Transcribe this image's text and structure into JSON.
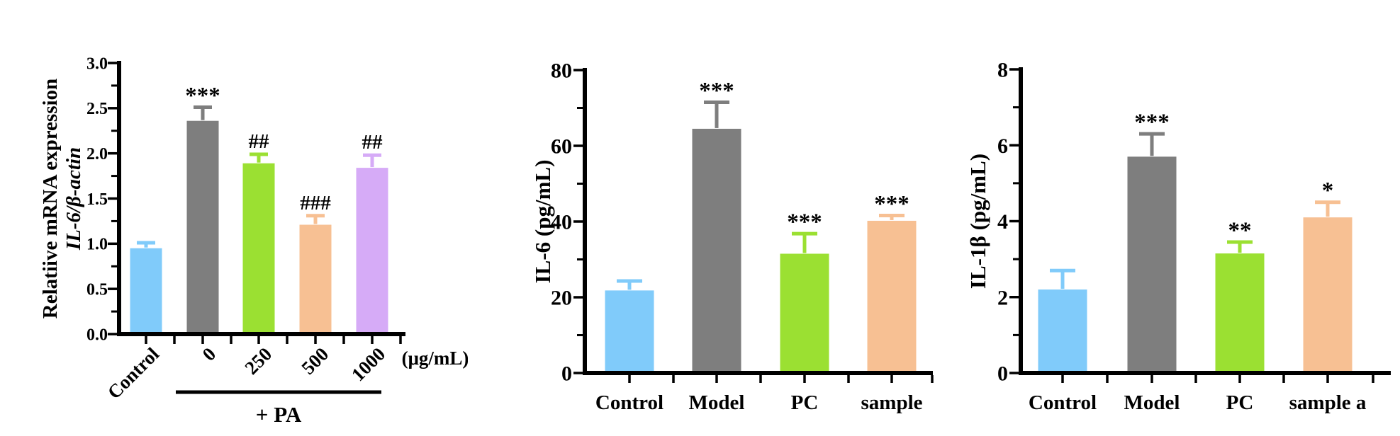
{
  "page": {
    "background": "#ffffff"
  },
  "chart_data": [
    {
      "type": "bar",
      "title": "",
      "ylabel_lines": [
        {
          "text": "Relatiive mRNA expression",
          "italic": false
        },
        {
          "text": "IL-6/β-actin",
          "italic": true
        }
      ],
      "xunit_label": "(μg/mL)",
      "group_bracket_label": "+ PA",
      "group_bracket_covers": [
        "0",
        "250",
        "500",
        "1000"
      ],
      "ylim": [
        0,
        3.0
      ],
      "ytick_values": [
        0,
        0.5,
        1.0,
        1.5,
        2.0,
        2.5,
        3.0
      ],
      "ytick_labels": [
        "0.0",
        "0.5",
        "1.0",
        "1.5",
        "2.0",
        "2.5",
        "3.0"
      ],
      "ytick_minor_step": 0.25,
      "categories": [
        "Control",
        "0",
        "250",
        "500",
        "1000"
      ],
      "values": [
        0.95,
        2.36,
        1.89,
        1.21,
        1.84
      ],
      "errors": [
        0.06,
        0.15,
        0.1,
        0.1,
        0.14
      ],
      "sig_labels": [
        "",
        "***",
        "##",
        "###",
        "##"
      ],
      "bar_colors": [
        "#80CBFA",
        "#7E7E7E",
        "#9BE032",
        "#F7C093",
        "#D6ABF7"
      ],
      "grid": false,
      "legend": "none"
    },
    {
      "type": "bar",
      "title": "",
      "ylabel": "IL-6 (pg/mL)",
      "ylim": [
        0,
        80
      ],
      "ytick_values": [
        0,
        20,
        40,
        60,
        80
      ],
      "ytick_labels": [
        "0",
        "20",
        "40",
        "60",
        "80"
      ],
      "ytick_minor_step": 10,
      "categories": [
        "Control",
        "Model",
        "PC",
        "sample"
      ],
      "values": [
        21.8,
        64.5,
        31.5,
        40.2
      ],
      "errors": [
        2.5,
        7.0,
        5.3,
        1.4
      ],
      "sig_labels": [
        "",
        "***",
        "***",
        "***"
      ],
      "bar_colors": [
        "#80CBFA",
        "#7E7E7E",
        "#9BE032",
        "#F7C093"
      ],
      "grid": false,
      "legend": "none"
    },
    {
      "type": "bar",
      "title": "",
      "ylabel": "IL-1β (pg/mL)",
      "ylim": [
        0,
        8
      ],
      "ytick_values": [
        0,
        2,
        4,
        6,
        8
      ],
      "ytick_labels": [
        "0",
        "2",
        "4",
        "6",
        "8"
      ],
      "ytick_minor_step": 1,
      "categories": [
        "Control",
        "Model",
        "PC",
        "sample a"
      ],
      "values": [
        2.2,
        5.7,
        3.15,
        4.1
      ],
      "errors": [
        0.5,
        0.6,
        0.3,
        0.4
      ],
      "sig_labels": [
        "",
        "***",
        "**",
        "*"
      ],
      "bar_colors": [
        "#80CBFA",
        "#7E7E7E",
        "#9BE032",
        "#F7C093"
      ],
      "grid": false,
      "legend": "none"
    }
  ]
}
